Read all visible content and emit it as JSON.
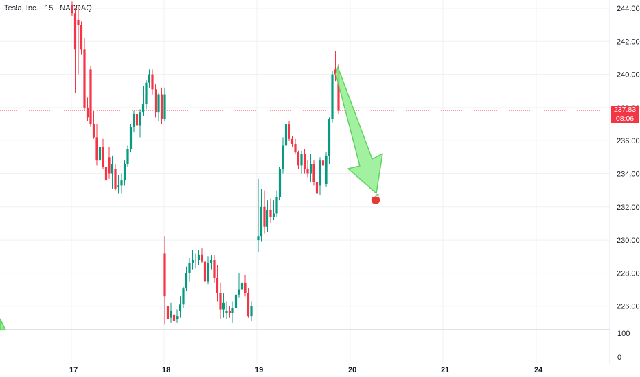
{
  "header": {
    "title": "Tesla, Inc. · 15 · NASDAQ"
  },
  "price_badge": {
    "price": "237.83",
    "countdown": "08:06",
    "color": "#f23645"
  },
  "colors": {
    "up": "#089981",
    "down": "#f23645",
    "arrow_fill": "#90ee90",
    "arrow_stroke": "#5fd35f",
    "grid": "#eef0f3"
  },
  "icons": {
    "target_marker": "apple-icon"
  },
  "volume_axis": {
    "labels": [
      "100",
      "0"
    ]
  },
  "chart_data": {
    "type": "candlestick",
    "y_axis": {
      "ticks": [
        244,
        242,
        240,
        238,
        236,
        234,
        232,
        230,
        228,
        226
      ],
      "tick_labels": [
        "244.00",
        "242.00",
        "240.00",
        "238.00",
        "236.00",
        "234.00",
        "232.00",
        "230.00",
        "228.00",
        "226.00"
      ],
      "range": [
        224.9,
        244.4
      ]
    },
    "x_axis": {
      "tick_labels": [
        "17",
        "18",
        "19",
        "20",
        "21",
        "24"
      ]
    },
    "current_price": 237.83,
    "projection": {
      "from": {
        "session": "19",
        "price": 240.2
      },
      "to": {
        "session": "20",
        "price": 232.6
      }
    },
    "segments": [
      {
        "session": "17",
        "candles": [
          [
            244.2,
            244.4,
            243.5,
            243.7
          ],
          [
            243.7,
            244.0,
            238.9,
            241.5
          ],
          [
            243.3,
            244.1,
            240.0,
            243.0
          ],
          [
            243.0,
            243.2,
            241.2,
            241.5
          ],
          [
            241.5,
            242.2,
            237.8,
            238.0
          ],
          [
            238.0,
            238.6,
            237.2,
            237.4
          ],
          [
            240.3,
            240.5,
            236.8,
            237.0
          ],
          [
            237.0,
            237.8,
            236.1,
            236.2
          ],
          [
            236.2,
            237.0,
            234.5,
            234.8
          ],
          [
            234.8,
            236.0,
            233.7,
            235.6
          ],
          [
            235.6,
            236.1,
            234.3,
            234.4
          ],
          [
            234.4,
            235.2,
            233.4,
            233.6
          ],
          [
            235.0,
            235.6,
            233.7,
            234.0
          ],
          [
            234.0,
            235.1,
            233.1,
            234.6
          ],
          [
            234.3,
            234.6,
            233.0,
            233.1
          ],
          [
            233.2,
            233.9,
            232.8,
            233.3
          ],
          [
            233.3,
            234.0,
            232.8,
            233.6
          ],
          [
            233.6,
            234.8,
            233.3,
            234.6
          ],
          [
            234.6,
            235.7,
            234.4,
            235.5
          ],
          [
            235.5,
            237.0,
            235.3,
            236.8
          ],
          [
            236.8,
            237.8,
            236.5,
            237.6
          ],
          [
            237.6,
            238.5,
            236.7,
            236.9
          ],
          [
            236.9,
            237.9,
            236.2,
            237.7
          ],
          [
            237.7,
            239.3,
            237.5,
            238.2
          ],
          [
            238.2,
            239.7,
            237.9,
            239.5
          ],
          [
            239.5,
            240.3,
            239.2,
            240.0
          ],
          [
            240.0,
            240.3,
            238.8,
            239.1
          ],
          [
            239.1,
            239.4,
            237.4,
            237.7
          ],
          [
            237.7,
            238.9,
            237.2,
            238.8
          ],
          [
            238.8,
            239.2,
            237.0,
            237.3
          ],
          [
            237.3,
            239.2,
            237.2,
            238.8
          ]
        ]
      },
      {
        "session": "18",
        "candles": [
          [
            229.2,
            230.2,
            224.9,
            226.6
          ],
          [
            226.0,
            226.4,
            225.0,
            225.2
          ],
          [
            225.3,
            226.2,
            225.0,
            225.7
          ],
          [
            225.5,
            225.9,
            225.0,
            225.1
          ],
          [
            225.2,
            225.8,
            225.0,
            225.4
          ],
          [
            225.7,
            226.6,
            225.3,
            226.1
          ],
          [
            226.1,
            227.2,
            225.9,
            227.1
          ],
          [
            227.1,
            228.4,
            226.9,
            228.0
          ],
          [
            228.0,
            228.9,
            227.5,
            228.6
          ],
          [
            228.6,
            229.4,
            228.2,
            228.8
          ],
          [
            228.8,
            229.2,
            228.3,
            228.8
          ],
          [
            228.8,
            229.4,
            228.5,
            229.1
          ],
          [
            229.1,
            229.5,
            228.6,
            228.7
          ],
          [
            228.7,
            229.0,
            227.1,
            227.5
          ],
          [
            227.5,
            229.0,
            227.3,
            228.6
          ],
          [
            228.6,
            229.1,
            228.2,
            228.8
          ],
          [
            228.8,
            229.1,
            227.4,
            227.7
          ],
          [
            227.7,
            228.5,
            226.3,
            226.8
          ],
          [
            226.8,
            227.4,
            225.2,
            225.8
          ],
          [
            225.8,
            226.8,
            225.3,
            226.2
          ],
          [
            225.6,
            226.3,
            225.2,
            225.7
          ],
          [
            225.7,
            226.0,
            225.3,
            225.6
          ],
          [
            225.6,
            226.3,
            225.0,
            225.9
          ],
          [
            225.9,
            227.2,
            225.7,
            226.7
          ],
          [
            226.7,
            228.0,
            226.5,
            227.0
          ],
          [
            227.0,
            227.8,
            226.6,
            227.4
          ],
          [
            227.4,
            227.9,
            226.6,
            226.8
          ],
          [
            226.8,
            227.1,
            225.3,
            225.4
          ],
          [
            225.4,
            226.3,
            225.1,
            226.0
          ]
        ]
      },
      {
        "session": "19",
        "candles": [
          [
            230.0,
            233.7,
            229.3,
            230.2
          ],
          [
            230.2,
            233.1,
            229.9,
            232.0
          ],
          [
            232.0,
            233.0,
            230.4,
            230.8
          ],
          [
            230.8,
            232.4,
            230.5,
            231.8
          ],
          [
            231.8,
            232.5,
            231.0,
            231.4
          ],
          [
            231.4,
            232.4,
            231.2,
            231.6
          ],
          [
            231.6,
            233.0,
            231.4,
            232.6
          ],
          [
            232.6,
            234.4,
            232.4,
            234.3
          ],
          [
            234.3,
            236.2,
            234.0,
            235.7
          ],
          [
            235.7,
            237.1,
            235.5,
            237.0
          ],
          [
            237.0,
            237.2,
            236.0,
            236.1
          ],
          [
            236.1,
            236.3,
            235.6,
            235.8
          ],
          [
            235.8,
            236.1,
            235.2,
            235.3
          ],
          [
            235.3,
            235.4,
            234.3,
            234.5
          ],
          [
            234.5,
            235.4,
            234.0,
            235.2
          ],
          [
            235.2,
            235.5,
            234.0,
            234.3
          ],
          [
            234.3,
            234.8,
            233.8,
            234.0
          ],
          [
            234.0,
            235.2,
            233.5,
            234.6
          ],
          [
            234.6,
            234.8,
            233.3,
            233.5
          ],
          [
            233.5,
            234.5,
            232.2,
            232.8
          ],
          [
            233.3,
            235.0,
            232.7,
            234.8
          ],
          [
            234.8,
            235.5,
            234.3,
            234.5
          ],
          [
            233.4,
            235.3,
            233.2,
            235.1
          ],
          [
            235.1,
            237.4,
            234.6,
            237.3
          ],
          [
            237.3,
            240.2,
            237.1,
            240.0
          ],
          [
            240.3,
            241.4,
            239.6,
            240.0
          ],
          [
            240.2,
            240.6,
            237.6,
            237.8
          ]
        ]
      }
    ]
  }
}
